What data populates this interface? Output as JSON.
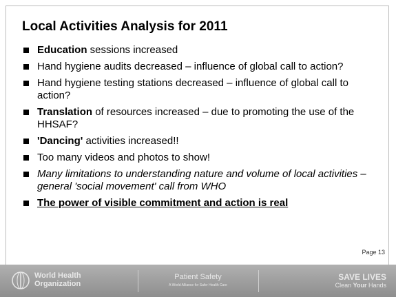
{
  "slide": {
    "title": "Local Activities Analysis for 2011",
    "bullets": [
      [
        {
          "text": "Education",
          "style": "bold"
        },
        {
          "text": " sessions increased",
          "style": "normal"
        }
      ],
      [
        {
          "text": "Hand hygiene audits decreased – influence of global call to action?",
          "style": "normal"
        }
      ],
      [
        {
          "text": "Hand hygiene testing stations decreased – influence of global call to action?",
          "style": "normal"
        }
      ],
      [
        {
          "text": "Translation",
          "style": "bold"
        },
        {
          "text": " of resources increased – due to promoting the use of the HHSAF?",
          "style": "normal"
        }
      ],
      [
        {
          "text": "'Dancing'",
          "style": "bold"
        },
        {
          "text": " activities increased!!",
          "style": "normal"
        }
      ],
      [
        {
          "text": "Too many videos and photos to show!",
          "style": "normal"
        }
      ],
      [
        {
          "text": "Many limitations to understanding nature and volume of local activities – general 'social movement' call from WHO",
          "style": "italic"
        }
      ],
      [
        {
          "text": "The power of visible commitment and action is real",
          "style": "bold-underline"
        }
      ]
    ],
    "page": "Page 13"
  },
  "footer": {
    "org": [
      "World Health",
      "Organization"
    ],
    "program": "Patient Safety",
    "program_sub": "A World Alliance for Safer Health Care",
    "slogan": "SAVE LIVES",
    "slogan_sub": [
      {
        "text": "Clean ",
        "style": "normal"
      },
      {
        "text": "Your",
        "style": "bold"
      },
      {
        "text": " Hands",
        "style": "normal"
      }
    ]
  }
}
